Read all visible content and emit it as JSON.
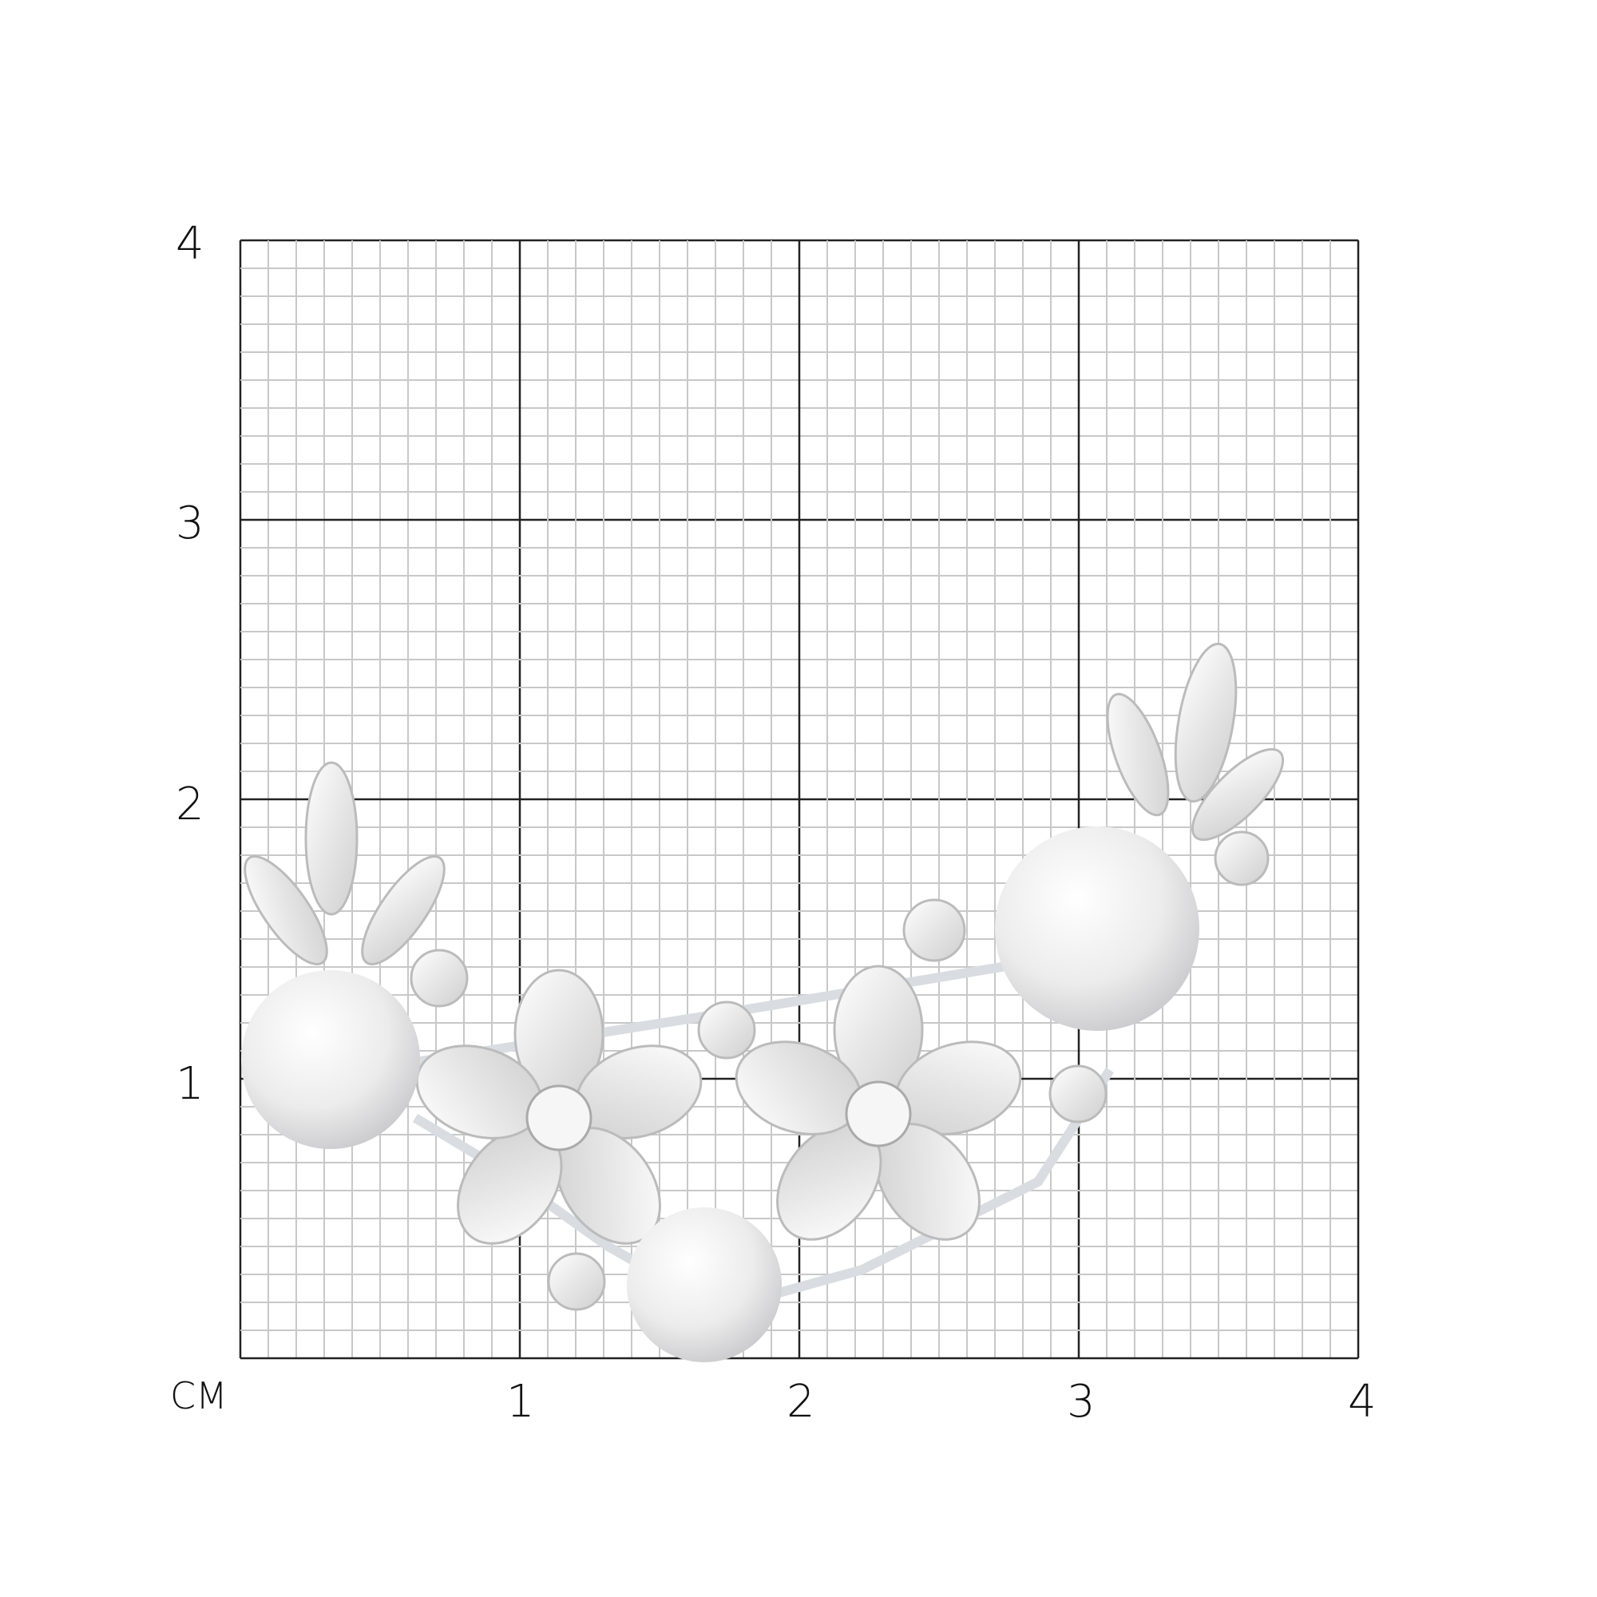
{
  "scale": {
    "unit_label": "СМ",
    "x_ticks": [
      "1",
      "2",
      "3",
      "4"
    ],
    "y_ticks": [
      "4",
      "3",
      "2",
      "1"
    ],
    "grid": {
      "major_step_cm": 1,
      "minor_step_mm": 1,
      "range_cm": [
        0,
        4
      ]
    }
  },
  "product": {
    "type": "brooch",
    "materials": [
      "pearl",
      "clear crystal",
      "silver"
    ],
    "colors": {
      "pearl": "#ececec",
      "metal": "#d9dde2",
      "crystal": "#f4f4f4"
    }
  }
}
